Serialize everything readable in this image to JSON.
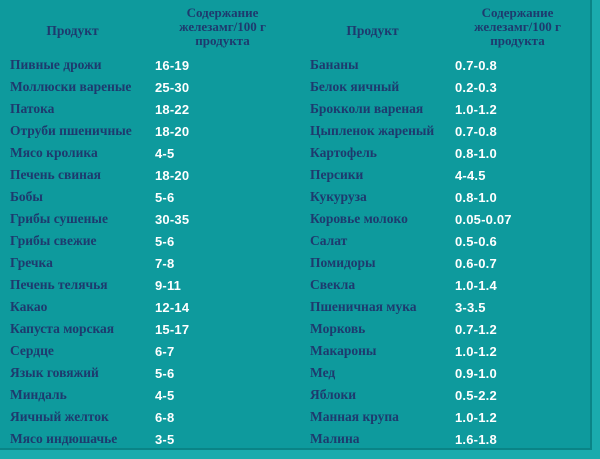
{
  "colors": {
    "background": "#0e9a9d",
    "outer_strip": "#1aabad",
    "border": "#0a8486",
    "product_text": "#1e3a6e",
    "value_text": "#ffffff"
  },
  "chart_data": {
    "type": "table",
    "title": "",
    "header": {
      "product": "Продукт",
      "value": "Содержание\nжелезамг/100 г\nпродукта"
    },
    "left_rows": [
      {
        "product": "Пивные дрожи",
        "value": "16-19"
      },
      {
        "product": "Моллюски вареные",
        "value": "25-30"
      },
      {
        "product": "Патока",
        "value": "18-22"
      },
      {
        "product": "Отруби пшеничные",
        "value": "18-20"
      },
      {
        "product": "Мясо кролика",
        "value": "4-5"
      },
      {
        "product": "Печень свиная",
        "value": "18-20"
      },
      {
        "product": "Бобы",
        "value": "5-6"
      },
      {
        "product": "Грибы сушеные",
        "value": "30-35"
      },
      {
        "product": "Грибы свежие",
        "value": "5-6"
      },
      {
        "product": "Гречка",
        "value": "7-8"
      },
      {
        "product": "Печень телячья",
        "value": "9-11"
      },
      {
        "product": "Какао",
        "value": "12-14"
      },
      {
        "product": "Капуста морская",
        "value": "15-17"
      },
      {
        "product": "Сердце",
        "value": "6-7"
      },
      {
        "product": "Язык говяжий",
        "value": "5-6"
      },
      {
        "product": "Миндаль",
        "value": "4-5"
      },
      {
        "product": "Яичный желток",
        "value": "6-8"
      },
      {
        "product": "Мясо индюшачье",
        "value": "3-5"
      }
    ],
    "right_rows": [
      {
        "product": "Бананы",
        "value": "0.7-0.8"
      },
      {
        "product": "Белок яичный",
        "value": "0.2-0.3"
      },
      {
        "product": "Брокколи вареная",
        "value": "1.0-1.2"
      },
      {
        "product": "Цыпленок жареный",
        "value": "0.7-0.8"
      },
      {
        "product": "Картофель",
        "value": "0.8-1.0"
      },
      {
        "product": "Персики",
        "value": "4-4.5"
      },
      {
        "product": "Кукуруза",
        "value": "0.8-1.0"
      },
      {
        "product": "Коровье молоко",
        "value": "0.05-0.07"
      },
      {
        "product": "Салат",
        "value": "0.5-0.6"
      },
      {
        "product": "Помидоры",
        "value": "0.6-0.7"
      },
      {
        "product": "Свекла",
        "value": "1.0-1.4"
      },
      {
        "product": "Пшеничная мука",
        "value": "3-3.5"
      },
      {
        "product": "Морковь",
        "value": "0.7-1.2"
      },
      {
        "product": "Макароны",
        "value": "1.0-1.2"
      },
      {
        "product": "Мед",
        "value": "0.9-1.0"
      },
      {
        "product": "Яблоки",
        "value": "0.5-2.2"
      },
      {
        "product": "Манная крупа",
        "value": "1.0-1.2"
      },
      {
        "product": "Малина",
        "value": "1.6-1.8"
      }
    ]
  }
}
